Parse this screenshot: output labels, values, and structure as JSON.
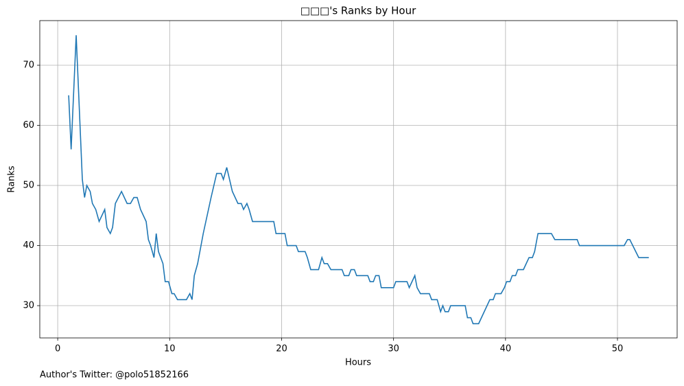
{
  "chart_data": {
    "type": "line",
    "title": "□□□'s Ranks by Hour",
    "x_label": "Hours",
    "y_label": "Ranks",
    "footer": "Author's Twitter: @polo51852166",
    "x": [
      0.98,
      1.2,
      1.65,
      2.2,
      2.4,
      2.6,
      2.9,
      3.1,
      3.4,
      3.7,
      4.2,
      4.4,
      4.7,
      4.9,
      5.15,
      5.7,
      6.2,
      6.5,
      6.8,
      7.1,
      7.4,
      7.9,
      8.1,
      8.3,
      8.6,
      8.8,
      9.0,
      9.4,
      9.6,
      9.9,
      10.2,
      10.4,
      10.7,
      11.5,
      11.8,
      12.0,
      12.2,
      12.5,
      13.0,
      13.7,
      14.2,
      14.6,
      14.8,
      15.1,
      15.6,
      16.1,
      16.4,
      16.6,
      16.9,
      17.1,
      17.4,
      19.3,
      19.5,
      20.3,
      20.5,
      21.3,
      21.5,
      22.1,
      22.3,
      22.6,
      23.3,
      23.6,
      23.8,
      24.1,
      24.4,
      25.4,
      25.6,
      26.0,
      26.2,
      26.5,
      26.7,
      27.7,
      27.9,
      28.2,
      28.4,
      28.7,
      28.9,
      30.0,
      30.2,
      31.2,
      31.4,
      31.9,
      32.1,
      32.4,
      33.2,
      33.4,
      33.9,
      34.2,
      34.4,
      34.6,
      34.9,
      35.1,
      36.4,
      36.6,
      36.9,
      37.1,
      37.6,
      38.6,
      38.9,
      39.1,
      39.6,
      39.9,
      40.1,
      40.4,
      40.6,
      40.9,
      41.1,
      41.6,
      42.1,
      42.4,
      42.6,
      42.9,
      44.1,
      44.4,
      46.4,
      46.6,
      50.6,
      50.9,
      51.1,
      51.9,
      52.8
    ],
    "series": [
      {
        "name": "Ranks",
        "color": "#1f77b4",
        "values": [
          65,
          56,
          75,
          51,
          48,
          50,
          49,
          47,
          46,
          44,
          46,
          43,
          42,
          43,
          47,
          49,
          47,
          47,
          48,
          48,
          46,
          44,
          41,
          40,
          38,
          42,
          39,
          37,
          34,
          34,
          32,
          32,
          31,
          31,
          32,
          31,
          35,
          37,
          42,
          48,
          52,
          52,
          51,
          53,
          49,
          47,
          47,
          46,
          47,
          46,
          44,
          44,
          42,
          42,
          40,
          40,
          39,
          39,
          38,
          36,
          36,
          38,
          37,
          37,
          36,
          36,
          35,
          35,
          36,
          36,
          35,
          35,
          34,
          34,
          35,
          35,
          33,
          33,
          34,
          34,
          33,
          35,
          33,
          32,
          32,
          31,
          31,
          29,
          30,
          29,
          29,
          30,
          30,
          28,
          28,
          27,
          27,
          31,
          31,
          32,
          32,
          33,
          34,
          34,
          35,
          35,
          36,
          36,
          38,
          38,
          39,
          42,
          42,
          41,
          41,
          40,
          40,
          41,
          41,
          38,
          38
        ]
      }
    ],
    "xlim": [
      -1.6,
      55.33
    ],
    "ylim": [
      24.63,
      77.43
    ],
    "xticks": [
      0,
      10,
      20,
      30,
      40,
      50
    ],
    "yticks": [
      30,
      40,
      50,
      60,
      70
    ],
    "grid": true
  }
}
